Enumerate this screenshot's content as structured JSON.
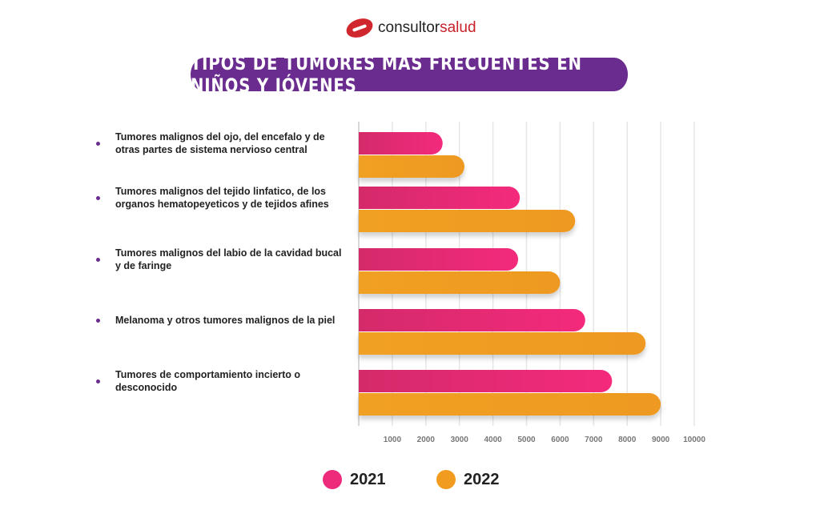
{
  "logo": {
    "text_a": "consultor",
    "text_b": "salud"
  },
  "chart_data": {
    "type": "bar",
    "orientation": "horizontal",
    "title": "TIPOS DE TUMORES MÁS FRECUENTES EN NIÑOS Y JÓVENES",
    "categories": [
      "Tumores malignos del ojo, del encefalo y de otras partes de sistema nervioso central",
      "Tumores malignos del tejido linfatico, de los organos hematopeyeticos y de tejidos afines",
      "Tumores malignos del labio de la cavidad bucal y de faringe",
      "Melanoma y otros tumores malignos de la piel",
      "Tumores de comportamiento incierto o desconocido"
    ],
    "series": [
      {
        "name": "2021",
        "color": "#ee2a7b",
        "values": [
          2500,
          4800,
          4750,
          6750,
          7550
        ]
      },
      {
        "name": "2022",
        "color": "#f29c1f",
        "values": [
          3150,
          6450,
          6000,
          8550,
          9000
        ]
      }
    ],
    "xlim": [
      0,
      10000
    ],
    "xticks": [
      "1000",
      "2000",
      "3000",
      "4000",
      "5000",
      "6000",
      "7000",
      "8000",
      "9000",
      "10000"
    ],
    "grid": true,
    "legend": "bottom"
  }
}
